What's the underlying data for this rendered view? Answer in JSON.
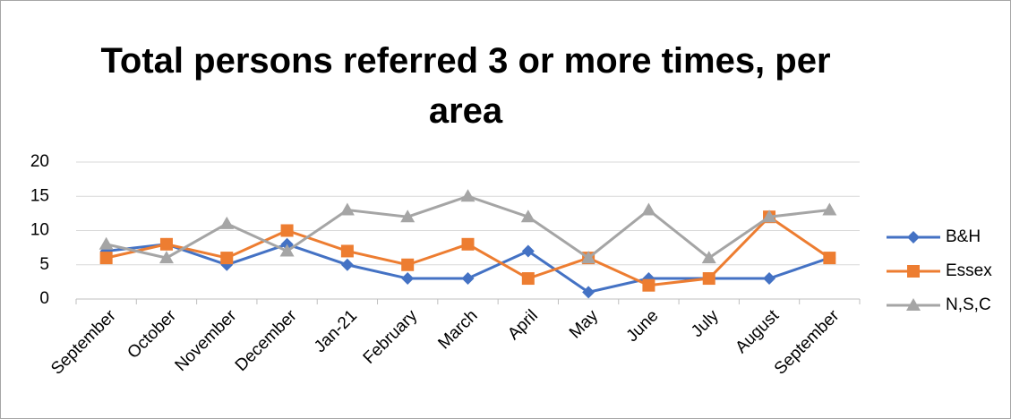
{
  "chart_data": {
    "type": "line",
    "title": "Total persons referred 3 or more times, per area",
    "categories": [
      "September",
      "October",
      "November",
      "December",
      "Jan-21",
      "February",
      "March",
      "April",
      "May",
      "June",
      "July",
      "August",
      "September"
    ],
    "series": [
      {
        "name": "B&H",
        "color": "#4472c4",
        "marker": "diamond",
        "values": [
          7,
          8,
          5,
          8,
          5,
          3,
          3,
          7,
          1,
          3,
          3,
          3,
          6
        ]
      },
      {
        "name": "Essex",
        "color": "#ed7d31",
        "marker": "square",
        "values": [
          6,
          8,
          6,
          10,
          7,
          5,
          8,
          3,
          6,
          2,
          3,
          12,
          6
        ]
      },
      {
        "name": "N,S,C",
        "color": "#a5a5a5",
        "marker": "triangle",
        "values": [
          8,
          6,
          11,
          7,
          13,
          12,
          15,
          12,
          6,
          13,
          6,
          12,
          13
        ]
      }
    ],
    "ylim": [
      0,
      20
    ],
    "yticks": [
      0,
      5,
      10,
      15,
      20
    ],
    "grid": true,
    "legend": "right"
  }
}
